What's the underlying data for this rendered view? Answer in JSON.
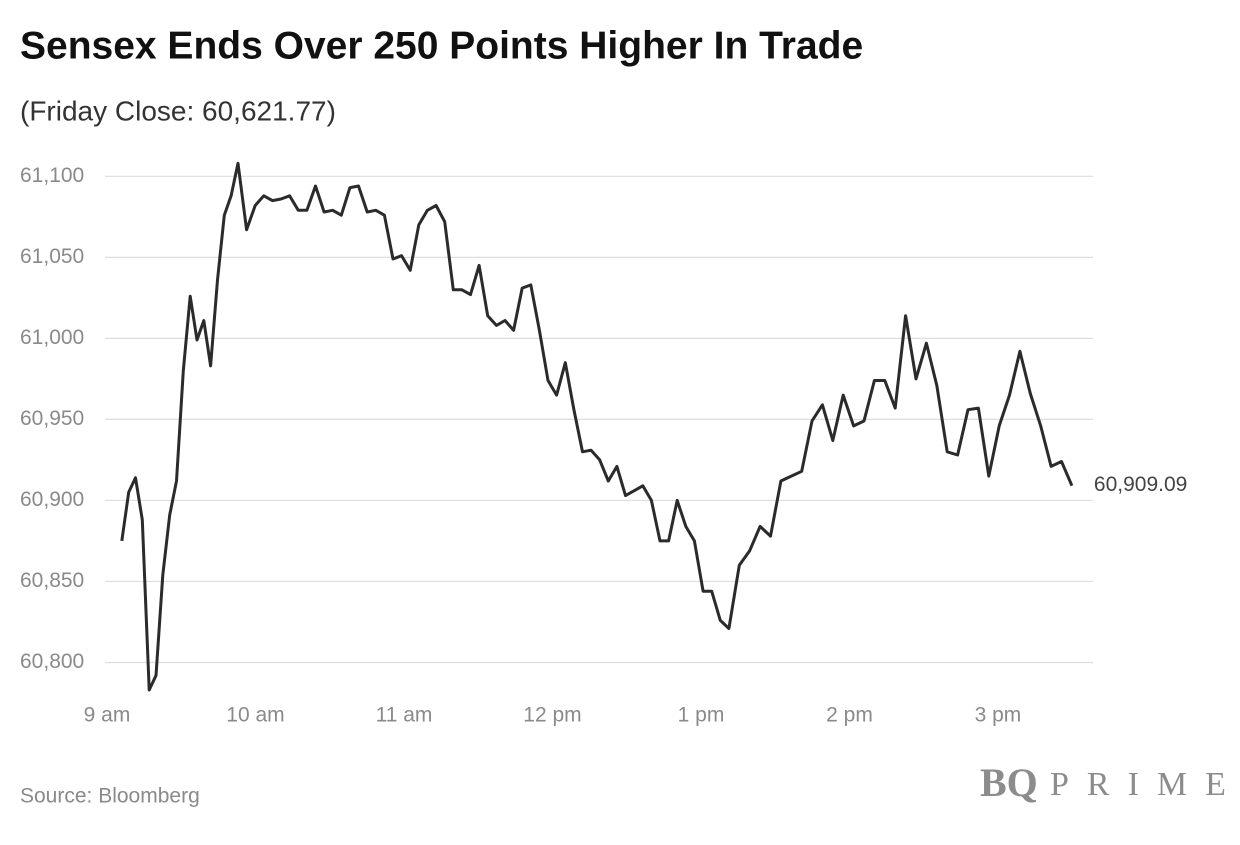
{
  "chart_data": {
    "type": "line",
    "title": "Sensex Ends Over 250 Points Higher In Trade",
    "subtitle": "(Friday Close: 60,621.77)",
    "source": "Source: Bloomberg",
    "logo": {
      "mark": "BQ",
      "word": "PRIME"
    },
    "end_label": "60,909.09",
    "x": [
      9.1,
      9.146,
      9.192,
      9.238,
      9.284,
      9.33,
      9.376,
      9.422,
      9.468,
      9.514,
      9.56,
      9.606,
      9.652,
      9.698,
      9.744,
      9.79,
      9.836,
      9.882,
      9.94,
      9.998,
      10.056,
      10.114,
      10.172,
      10.23,
      10.288,
      10.346,
      10.404,
      10.462,
      10.52,
      10.578,
      10.636,
      10.694,
      10.752,
      10.81,
      10.868,
      10.926,
      10.984,
      11.042,
      11.1,
      11.158,
      11.216,
      11.274,
      11.332,
      11.39,
      11.448,
      11.506,
      11.564,
      11.622,
      11.68,
      11.738,
      11.796,
      11.854,
      11.912,
      11.97,
      12.028,
      12.086,
      12.144,
      12.202,
      12.26,
      12.318,
      12.376,
      12.434,
      12.492,
      12.55,
      12.608,
      12.666,
      12.724,
      12.782,
      12.84,
      12.898,
      12.956,
      13.014,
      13.072,
      13.13,
      13.188,
      13.258,
      13.328,
      13.398,
      13.468,
      13.538,
      13.608,
      13.678,
      13.748,
      13.818,
      13.888,
      13.958,
      14.028,
      14.098,
      14.168,
      14.238,
      14.308,
      14.378,
      14.448,
      14.518,
      14.588,
      14.658,
      14.728,
      14.798,
      14.868,
      14.938,
      15.008,
      15.078,
      15.148,
      15.218,
      15.288,
      15.358,
      15.428,
      15.498
    ],
    "series": [
      {
        "name": "Sensex",
        "color": "#2b2b2b",
        "values": [
          60875,
          60905,
          60914,
          60888,
          60783,
          60792,
          60854,
          60891,
          60912,
          60980,
          61026,
          60999,
          61011,
          60983,
          61036,
          61076,
          61088,
          61108,
          61067,
          61082,
          61088,
          61085,
          61086,
          61088,
          61079,
          61079,
          61094,
          61078,
          61079,
          61076,
          61093,
          61094,
          61078,
          61079,
          61076,
          61049,
          61051,
          61042,
          61070,
          61079,
          61082,
          61072,
          61030,
          61030,
          61027,
          61045,
          61014,
          61008,
          61011,
          61005,
          61031,
          61033,
          61005,
          60974,
          60965,
          60985,
          60956,
          60930,
          60931,
          60925,
          60912,
          60921,
          60903,
          60906,
          60909,
          60900,
          60875,
          60875,
          60900,
          60884,
          60875,
          60844,
          60844,
          60826,
          60821,
          60860,
          60869,
          60884,
          60878,
          60912,
          60915,
          60918,
          60949,
          60959,
          60937,
          60965,
          60946,
          60949,
          60974,
          60974,
          60957,
          61014,
          60975,
          60997,
          60971,
          60930,
          60928,
          60956,
          60957,
          60915,
          60946,
          60965,
          60992,
          60966,
          60946,
          60921,
          60924,
          60909.09
        ]
      }
    ],
    "xlim": [
      9,
      15.64
    ],
    "xticks": [
      {
        "value": 9,
        "label": "9 am"
      },
      {
        "value": 10,
        "label": "10 am"
      },
      {
        "value": 11,
        "label": "11 am"
      },
      {
        "value": 12,
        "label": "12 pm"
      },
      {
        "value": 13,
        "label": "1 pm"
      },
      {
        "value": 14,
        "label": "2 pm"
      },
      {
        "value": 15,
        "label": "3 pm"
      }
    ],
    "ylim": [
      60775,
      61115
    ],
    "yticks": [
      {
        "value": 60800,
        "label": "60,800"
      },
      {
        "value": 60850,
        "label": "60,850"
      },
      {
        "value": 60900,
        "label": "60,900"
      },
      {
        "value": 60950,
        "label": "60,950"
      },
      {
        "value": 61000,
        "label": "61,000"
      },
      {
        "value": 61050,
        "label": "61,050"
      },
      {
        "value": 61100,
        "label": "61,100"
      }
    ],
    "grid": true
  }
}
